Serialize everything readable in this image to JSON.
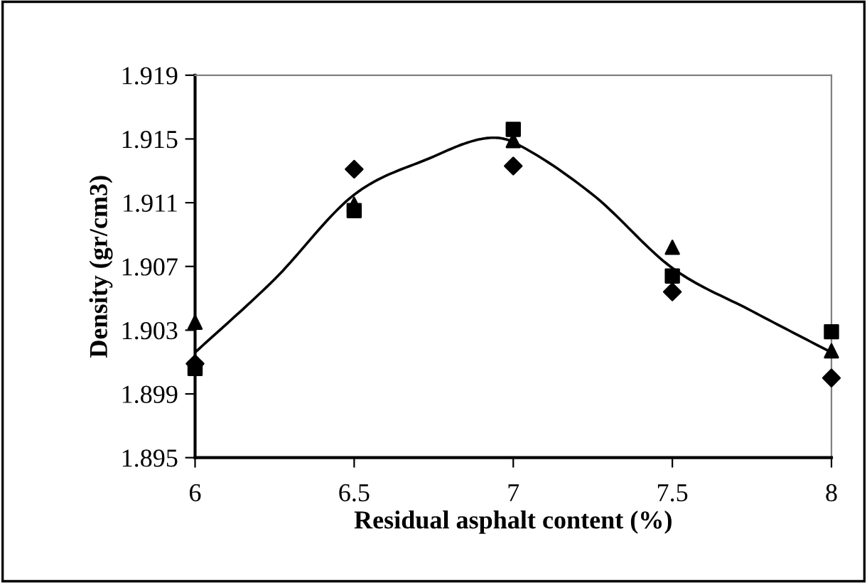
{
  "chart_data": {
    "type": "scatter",
    "xlabel": "Residual asphalt content (%)",
    "ylabel": "Density (gr/cm3)",
    "xlim": [
      6,
      8
    ],
    "xticks": [
      6,
      6.5,
      7,
      7.5,
      8
    ],
    "ylim": [
      1.895,
      1.919
    ],
    "yticks": [
      {
        "value": 1.895,
        "label": "1.895"
      },
      {
        "value": 1.899,
        "label": "1.899"
      },
      {
        "value": 1.903,
        "label": "1.903"
      },
      {
        "value": 1.907,
        "label": "1.907"
      },
      {
        "value": 1.911,
        "label": "1.911"
      },
      {
        "value": 1.915,
        "label": "1.915"
      },
      {
        "value": 1.919,
        "label": "1.919"
      }
    ],
    "x": [
      6,
      6.5,
      7,
      7.5,
      8
    ],
    "grid": false,
    "legend": false,
    "series": [
      {
        "marker": "diamond",
        "color": "#000000",
        "values": [
          1.9009,
          1.9131,
          1.9133,
          1.9054,
          1.9
        ]
      },
      {
        "marker": "square",
        "color": "#000000",
        "values": [
          1.9006,
          1.9105,
          1.9156,
          1.9064,
          1.9029
        ]
      },
      {
        "marker": "triangle",
        "color": "#000000",
        "values": [
          1.9035,
          1.9109,
          1.9149,
          1.9082,
          1.9017
        ]
      },
      {
        "type": "line",
        "marker": "none",
        "line_style": "solid",
        "color": "#000000",
        "x": [
          6,
          6.25,
          6.5,
          6.75,
          6.9,
          7,
          7.25,
          7.5,
          7.75,
          8
        ],
        "values": [
          1.9016,
          1.9062,
          1.9115,
          1.9139,
          1.915,
          1.9148,
          1.9115,
          1.9069,
          1.9042,
          1.9016
        ]
      }
    ]
  }
}
